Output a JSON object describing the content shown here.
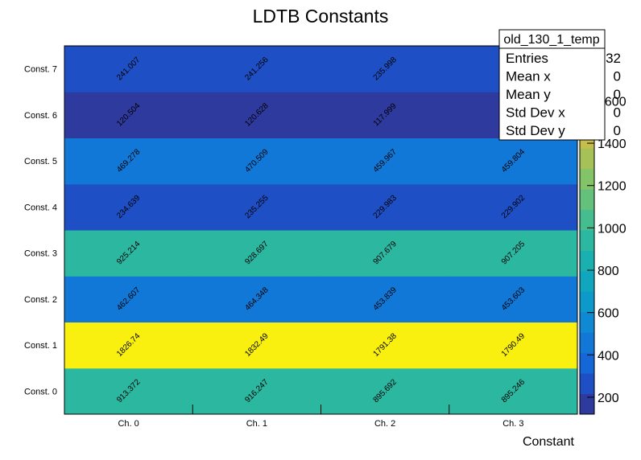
{
  "chart_data": {
    "type": "heatmap",
    "title": "LDTB Constants",
    "xlabel": "Constant",
    "ylabel": "",
    "x_categories": [
      "Ch. 0",
      "Ch. 1",
      "Ch. 2",
      "Ch. 3"
    ],
    "y_categories": [
      "Const. 0",
      "Const. 1",
      "Const. 2",
      "Const. 3",
      "Const. 4",
      "Const. 5",
      "Const. 6",
      "Const. 7"
    ],
    "values": [
      [
        "913.372",
        "916.247",
        "895.692",
        "895.246"
      ],
      [
        "1826.74",
        "1832.49",
        "1791.38",
        "1790.49"
      ],
      [
        "462.607",
        "464.348",
        "453.839",
        "453.603"
      ],
      [
        "925.214",
        "928.697",
        "907.679",
        "907.205"
      ],
      [
        "234.639",
        "235.255",
        "229.983",
        "229.902"
      ],
      [
        "469.278",
        "470.509",
        "459.967",
        "459.804"
      ],
      [
        "120.504",
        "120.628",
        "117.999",
        ""
      ],
      [
        "241.007",
        "241.256",
        "235.998",
        ""
      ]
    ],
    "zlim": [
      100,
      1832.49
    ],
    "z_ticks": [
      "200",
      "400",
      "600",
      "800",
      "1000",
      "1200",
      "1400",
      "1600"
    ],
    "palette": [
      "#2f3a9e",
      "#1f4fc4",
      "#1566d6",
      "#1278d8",
      "#0f89d3",
      "#0d99c9",
      "#10a6bd",
      "#1ab0b0",
      "#2cb7a1",
      "#45bd8f",
      "#63c17c",
      "#84c468",
      "#a6c257",
      "#c7bd4a",
      "#e2b943",
      "#f0c539",
      "#f6d92a",
      "#f9f00f"
    ],
    "stats": {
      "name": "old_130_1_temp",
      "rows": [
        {
          "label": "Entries",
          "value": "32"
        },
        {
          "label": "Mean x",
          "value": "0"
        },
        {
          "label": "Mean y",
          "value": "0"
        },
        {
          "label": "Std Dev x",
          "value": "0"
        },
        {
          "label": "Std Dev y",
          "value": "0"
        }
      ]
    }
  }
}
